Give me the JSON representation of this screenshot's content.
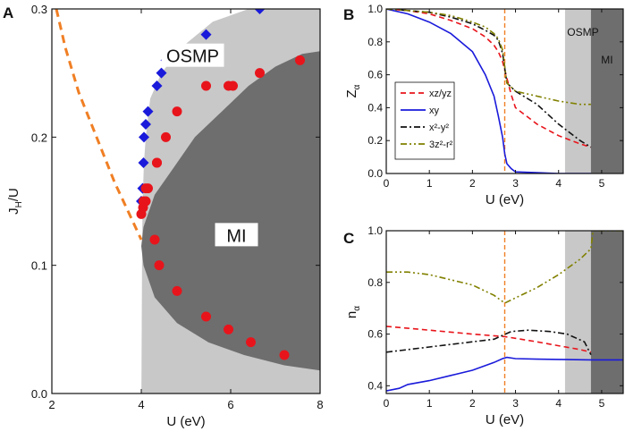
{
  "chart_data": [
    {
      "id": "A",
      "type": "scatter",
      "panel_label": "A",
      "xlabel": "U (eV)",
      "ylabel_main": "J",
      "ylabel_sub": "H",
      "ylabel_tail": "/U",
      "xlim": [
        2,
        8
      ],
      "ylim": [
        0,
        0.3
      ],
      "xticks": [
        2,
        4,
        6,
        8
      ],
      "xtick_labels": [
        "2",
        "4",
        "6",
        "8"
      ],
      "yticks": [
        0,
        0.1,
        0.2,
        0.3
      ],
      "ytick_labels": [
        "0.0",
        "0.1",
        "0.2",
        "0.3"
      ],
      "regions": [
        {
          "name": "OSMP",
          "label": "OSMP",
          "color": "#c8c8c8"
        },
        {
          "name": "MI",
          "label": "MI",
          "color": "#6e6e6e"
        }
      ],
      "boundary_osmp": {
        "x": [
          4.02,
          4.03,
          4.06,
          4.1,
          4.2,
          4.45,
          4.9,
          5.6,
          6.4,
          7.2,
          8.0
        ],
        "y": [
          0.12,
          0.15,
          0.18,
          0.2,
          0.23,
          0.25,
          0.27,
          0.29,
          0.3,
          0.3,
          0.3
        ]
      },
      "boundary_mi": {
        "x": [
          8.0,
          7.6,
          7.0,
          6.4,
          5.8,
          5.2,
          4.7,
          4.3,
          4.05,
          4.0,
          4.05,
          4.3,
          4.8,
          5.5,
          6.3,
          7.2,
          8.0
        ],
        "y": [
          0.267,
          0.265,
          0.255,
          0.24,
          0.22,
          0.2,
          0.175,
          0.155,
          0.13,
          0.115,
          0.1,
          0.075,
          0.055,
          0.04,
          0.03,
          0.022,
          0.018
        ]
      },
      "series": [
        {
          "name": "OSMP boundary",
          "marker": "diamond",
          "color": "#1a1adb",
          "x": [
            4.0,
            4.03,
            4.05,
            4.06,
            4.1,
            4.15,
            4.35,
            4.45,
            4.55,
            4.8,
            5.45,
            6.65
          ],
          "y": [
            0.15,
            0.16,
            0.18,
            0.2,
            0.21,
            0.22,
            0.24,
            0.25,
            0.26,
            0.26,
            0.28,
            0.3
          ]
        },
        {
          "name": "MI boundary",
          "marker": "circle",
          "color": "#e8141b",
          "x": [
            4.0,
            4.04,
            4.05,
            4.1,
            4.1,
            4.15,
            4.35,
            4.35,
            4.55,
            4.8,
            5.45,
            5.95,
            6.05,
            6.65,
            7.55,
            7.2,
            6.45,
            5.95,
            5.45,
            4.8,
            4.4,
            4.3
          ],
          "y": [
            0.14,
            0.145,
            0.15,
            0.15,
            0.16,
            0.16,
            0.18,
            0.18,
            0.2,
            0.22,
            0.24,
            0.24,
            0.24,
            0.25,
            0.26,
            0.03,
            0.04,
            0.05,
            0.06,
            0.08,
            0.1,
            0.12
          ]
        },
        {
          "name": "dashed guide",
          "style": "dashed",
          "color": "#f07f24",
          "x": [
            2.1,
            2.3,
            2.6,
            3.0,
            3.4,
            3.8,
            4.0
          ],
          "y": [
            0.3,
            0.27,
            0.235,
            0.2,
            0.165,
            0.135,
            0.12
          ]
        }
      ]
    },
    {
      "id": "B",
      "type": "line",
      "panel_label": "B",
      "xlabel": "U (eV)",
      "ylabel_main": "Z",
      "ylabel_sub": "α",
      "xlim": [
        0,
        5.5
      ],
      "ylim": [
        0,
        1.0
      ],
      "xticks": [
        0,
        1,
        2,
        3,
        4,
        5
      ],
      "xtick_labels": [
        "0",
        "1",
        "2",
        "3",
        "4",
        "5"
      ],
      "yticks": [
        0,
        0.2,
        0.4,
        0.6,
        0.8,
        1.0
      ],
      "ytick_labels": [
        "0.0",
        "0.2",
        "0.4",
        "0.6",
        "0.8",
        "1.0"
      ],
      "vline_x": 2.75,
      "shaded": [
        {
          "name": "OSMP",
          "label": "OSMP",
          "x0": 4.15,
          "x1": 4.75,
          "color": "#c8c8c8"
        },
        {
          "name": "MI",
          "label": "MI",
          "x0": 4.75,
          "x1": 5.5,
          "color": "#6e6e6e"
        }
      ],
      "legend": [
        {
          "label": "xz/yz",
          "color": "#e8141b",
          "style": "dashed"
        },
        {
          "label": "xy",
          "color": "#1a1adb",
          "style": "solid"
        },
        {
          "label": "x²-y²",
          "color": "#111111",
          "style": "dashdot"
        },
        {
          "label": "3z²-r²",
          "color": "#808000",
          "style": "dashdotdot"
        }
      ],
      "series": [
        {
          "name": "xz/yz",
          "x": [
            0,
            0.5,
            1.0,
            1.5,
            2.0,
            2.3,
            2.5,
            2.6,
            2.7,
            2.8,
            2.9,
            3.0,
            3.5,
            4.0,
            4.5,
            4.75
          ],
          "y": [
            1.0,
            0.99,
            0.97,
            0.93,
            0.88,
            0.83,
            0.78,
            0.74,
            0.68,
            0.58,
            0.48,
            0.4,
            0.3,
            0.23,
            0.18,
            0.16
          ]
        },
        {
          "name": "xy",
          "x": [
            0,
            0.5,
            1.0,
            1.5,
            2.0,
            2.3,
            2.5,
            2.6,
            2.7,
            2.75,
            2.8,
            2.9,
            3.0,
            3.5,
            4.0,
            4.75
          ],
          "y": [
            1.0,
            0.97,
            0.92,
            0.85,
            0.74,
            0.6,
            0.47,
            0.35,
            0.22,
            0.12,
            0.06,
            0.03,
            0.01,
            0.005,
            0.0,
            0.0
          ]
        },
        {
          "name": "x²-y²",
          "x": [
            0,
            0.5,
            1.0,
            1.5,
            2.0,
            2.3,
            2.5,
            2.6,
            2.7,
            2.8,
            3.0,
            3.5,
            4.0,
            4.5,
            4.75
          ],
          "y": [
            1.0,
            0.99,
            0.98,
            0.95,
            0.91,
            0.87,
            0.84,
            0.81,
            0.73,
            0.55,
            0.5,
            0.42,
            0.3,
            0.2,
            0.16
          ]
        },
        {
          "name": "3z²-r²",
          "x": [
            0,
            0.5,
            1.0,
            1.5,
            2.0,
            2.3,
            2.5,
            2.6,
            2.7,
            2.8,
            3.0,
            3.5,
            4.0,
            4.5,
            4.75
          ],
          "y": [
            1.0,
            0.99,
            0.98,
            0.96,
            0.92,
            0.89,
            0.85,
            0.82,
            0.75,
            0.55,
            0.5,
            0.47,
            0.44,
            0.42,
            0.42
          ]
        }
      ]
    },
    {
      "id": "C",
      "type": "line",
      "panel_label": "C",
      "xlabel": "U (eV)",
      "ylabel_main": "n",
      "ylabel_sub": "α",
      "xlim": [
        0,
        5.5
      ],
      "ylim": [
        0.37,
        1.0
      ],
      "xticks": [
        0,
        1,
        2,
        3,
        4,
        5
      ],
      "xtick_labels": [
        "0",
        "1",
        "2",
        "3",
        "4",
        "5"
      ],
      "yticks": [
        0.4,
        0.6,
        0.8,
        1.0
      ],
      "ytick_labels": [
        "0.4",
        "0.6",
        "0.8",
        "1.0"
      ],
      "vline_x": 2.75,
      "shaded": [
        {
          "name": "OSMP",
          "x0": 4.15,
          "x1": 4.75,
          "color": "#c8c8c8"
        },
        {
          "name": "MI",
          "x0": 4.75,
          "x1": 5.5,
          "color": "#6e6e6e"
        }
      ],
      "series": [
        {
          "name": "xz/yz",
          "x": [
            0,
            1,
            2,
            2.75,
            3.5,
            4.0,
            4.5,
            4.75
          ],
          "y": [
            0.63,
            0.615,
            0.6,
            0.59,
            0.57,
            0.555,
            0.54,
            0.53
          ]
        },
        {
          "name": "xy",
          "x": [
            0,
            0.3,
            0.5,
            1.0,
            1.5,
            2.0,
            2.5,
            2.7,
            2.8,
            3.0,
            3.5,
            4.0,
            4.75,
            5.5
          ],
          "y": [
            0.38,
            0.39,
            0.405,
            0.42,
            0.44,
            0.46,
            0.49,
            0.505,
            0.51,
            0.505,
            0.503,
            0.502,
            0.5,
            0.5
          ]
        },
        {
          "name": "x²-y²",
          "x": [
            0,
            0.5,
            1.0,
            1.5,
            2.0,
            2.5,
            2.7,
            2.9,
            3.3,
            3.8,
            4.2,
            4.6,
            4.75
          ],
          "y": [
            0.53,
            0.54,
            0.55,
            0.56,
            0.57,
            0.58,
            0.595,
            0.61,
            0.615,
            0.61,
            0.6,
            0.57,
            0.52
          ]
        },
        {
          "name": "3z²-r²",
          "x": [
            0,
            0.5,
            1.0,
            1.5,
            2.0,
            2.5,
            2.75,
            3.0,
            3.5,
            4.0,
            4.5,
            4.75,
            4.8,
            5.5
          ],
          "y": [
            0.84,
            0.84,
            0.83,
            0.81,
            0.79,
            0.75,
            0.72,
            0.74,
            0.78,
            0.83,
            0.89,
            0.93,
            1.0,
            1.0
          ]
        }
      ]
    }
  ]
}
